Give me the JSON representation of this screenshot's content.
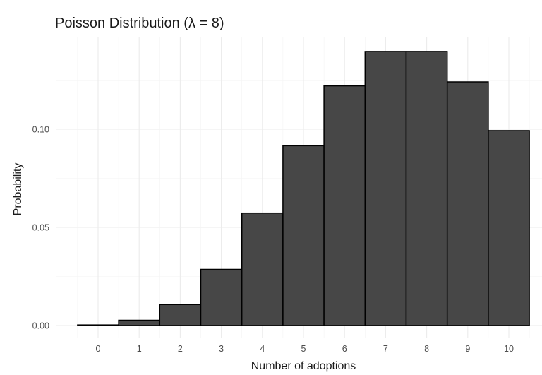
{
  "chart_data": {
    "type": "bar",
    "title": "Poisson Distribution (λ = 8)",
    "xlabel": "Number of adoptions",
    "ylabel": "Probability",
    "categories": [
      "0",
      "1",
      "2",
      "3",
      "4",
      "5",
      "6",
      "7",
      "8",
      "9",
      "10"
    ],
    "values": [
      0.0003,
      0.0027,
      0.0107,
      0.0286,
      0.0573,
      0.0916,
      0.1221,
      0.1396,
      0.1396,
      0.1241,
      0.0993
    ],
    "ylim": [
      0,
      0.145
    ],
    "y_ticks": [
      0.0,
      0.05,
      0.1
    ],
    "y_tick_labels": [
      "0.00",
      "0.05",
      "0.10"
    ],
    "grid": true,
    "bar_color": "#474747",
    "bar_outline": "#000000"
  }
}
